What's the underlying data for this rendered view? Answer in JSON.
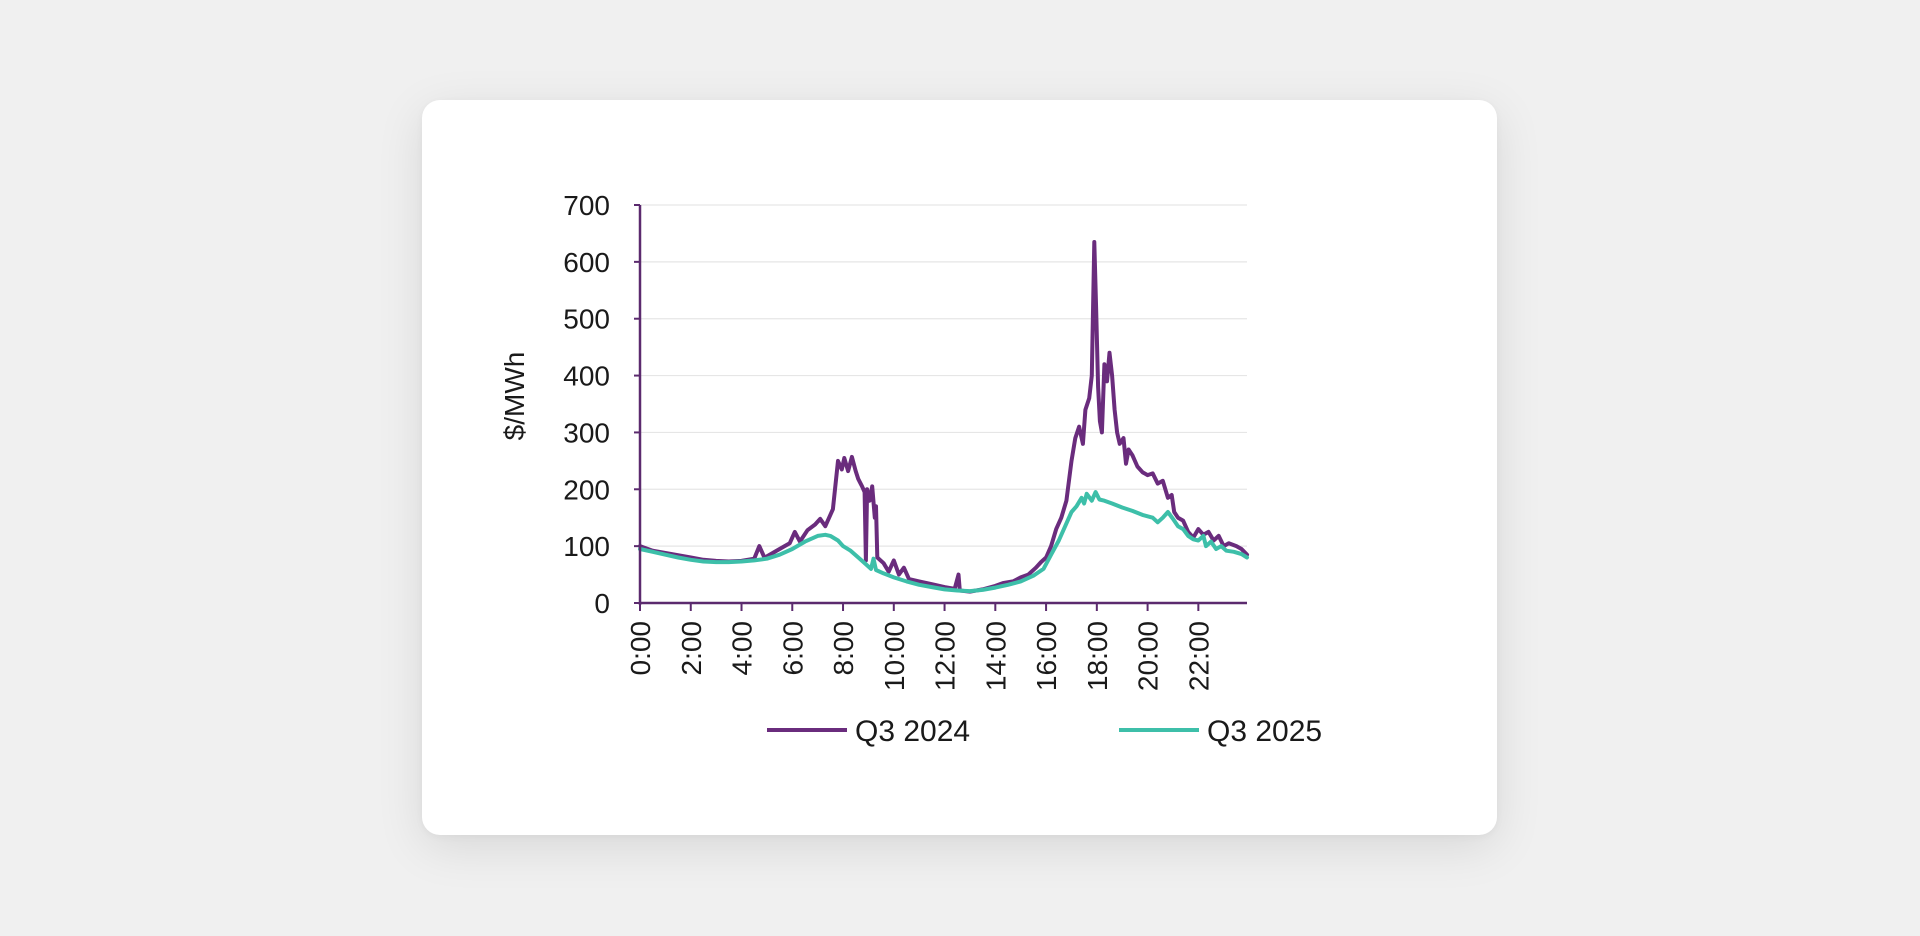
{
  "chart_data": {
    "type": "line",
    "ylabel": "$/MWh",
    "xlabel": "",
    "ylim": [
      0,
      700
    ],
    "y_ticks": [
      "0",
      "100",
      "200",
      "300",
      "400",
      "500",
      "600",
      "700"
    ],
    "x_tick_labels": [
      "0:00",
      "2:00",
      "4:00",
      "6:00",
      "8:00",
      "10:00",
      "12:00",
      "14:00",
      "16:00",
      "18:00",
      "20:00",
      "22:00"
    ],
    "x_tick_hours": [
      0,
      2,
      4,
      6,
      8,
      10,
      12,
      14,
      16,
      18,
      20,
      22
    ],
    "xlim_hours": [
      0,
      23.917
    ],
    "grid": "horizontal",
    "legend_position": "bottom",
    "series": [
      {
        "name": "Q3 2024",
        "color": "#6a2c7d",
        "points": [
          [
            0,
            100
          ],
          [
            0.5,
            92
          ],
          [
            1,
            88
          ],
          [
            1.5,
            84
          ],
          [
            2,
            80
          ],
          [
            2.5,
            76
          ],
          [
            3,
            74
          ],
          [
            3.5,
            73
          ],
          [
            4,
            74
          ],
          [
            4.5,
            78
          ],
          [
            4.7,
            100
          ],
          [
            4.9,
            80
          ],
          [
            5,
            82
          ],
          [
            5.5,
            95
          ],
          [
            5.9,
            105
          ],
          [
            6.1,
            125
          ],
          [
            6.3,
            108
          ],
          [
            6.6,
            128
          ],
          [
            6.9,
            138
          ],
          [
            7.1,
            148
          ],
          [
            7.3,
            135
          ],
          [
            7.6,
            165
          ],
          [
            7.8,
            250
          ],
          [
            7.95,
            235
          ],
          [
            8.05,
            255
          ],
          [
            8.2,
            232
          ],
          [
            8.35,
            257
          ],
          [
            8.5,
            232
          ],
          [
            8.6,
            218
          ],
          [
            8.75,
            205
          ],
          [
            8.85,
            195
          ],
          [
            8.9,
            75
          ],
          [
            8.95,
            200
          ],
          [
            9.05,
            180
          ],
          [
            9.15,
            205
          ],
          [
            9.25,
            150
          ],
          [
            9.3,
            170
          ],
          [
            9.35,
            80
          ],
          [
            9.6,
            70
          ],
          [
            9.8,
            55
          ],
          [
            10,
            75
          ],
          [
            10.2,
            50
          ],
          [
            10.4,
            62
          ],
          [
            10.6,
            42
          ],
          [
            11,
            38
          ],
          [
            11.5,
            33
          ],
          [
            12,
            28
          ],
          [
            12.4,
            25
          ],
          [
            12.55,
            50
          ],
          [
            12.6,
            22
          ],
          [
            13,
            20
          ],
          [
            13.5,
            24
          ],
          [
            14,
            30
          ],
          [
            14.3,
            35
          ],
          [
            14.7,
            38
          ],
          [
            15,
            45
          ],
          [
            15.3,
            50
          ],
          [
            15.6,
            62
          ],
          [
            15.8,
            72
          ],
          [
            16,
            80
          ],
          [
            16.2,
            100
          ],
          [
            16.4,
            130
          ],
          [
            16.6,
            150
          ],
          [
            16.8,
            180
          ],
          [
            17,
            250
          ],
          [
            17.15,
            290
          ],
          [
            17.3,
            310
          ],
          [
            17.45,
            280
          ],
          [
            17.55,
            340
          ],
          [
            17.7,
            360
          ],
          [
            17.8,
            400
          ],
          [
            17.9,
            635
          ],
          [
            17.97,
            520
          ],
          [
            18.05,
            380
          ],
          [
            18.12,
            320
          ],
          [
            18.2,
            300
          ],
          [
            18.3,
            420
          ],
          [
            18.4,
            390
          ],
          [
            18.5,
            440
          ],
          [
            18.6,
            400
          ],
          [
            18.7,
            340
          ],
          [
            18.8,
            300
          ],
          [
            18.9,
            280
          ],
          [
            19.05,
            290
          ],
          [
            19.15,
            245
          ],
          [
            19.25,
            270
          ],
          [
            19.4,
            260
          ],
          [
            19.6,
            240
          ],
          [
            19.8,
            230
          ],
          [
            20,
            225
          ],
          [
            20.2,
            228
          ],
          [
            20.4,
            210
          ],
          [
            20.6,
            215
          ],
          [
            20.8,
            185
          ],
          [
            20.95,
            190
          ],
          [
            21.05,
            160
          ],
          [
            21.2,
            150
          ],
          [
            21.4,
            145
          ],
          [
            21.6,
            125
          ],
          [
            21.8,
            115
          ],
          [
            22,
            130
          ],
          [
            22.2,
            120
          ],
          [
            22.4,
            125
          ],
          [
            22.6,
            110
          ],
          [
            22.8,
            118
          ],
          [
            23,
            100
          ],
          [
            23.2,
            105
          ],
          [
            23.5,
            100
          ],
          [
            23.7,
            95
          ],
          [
            23.917,
            85
          ]
        ]
      },
      {
        "name": "Q3 2025",
        "color": "#3dbfa9",
        "points": [
          [
            0,
            95
          ],
          [
            0.5,
            90
          ],
          [
            1,
            85
          ],
          [
            1.5,
            80
          ],
          [
            2,
            76
          ],
          [
            2.5,
            73
          ],
          [
            3,
            72
          ],
          [
            3.5,
            72
          ],
          [
            4,
            73
          ],
          [
            4.5,
            75
          ],
          [
            5,
            78
          ],
          [
            5.5,
            85
          ],
          [
            6,
            95
          ],
          [
            6.5,
            108
          ],
          [
            7,
            118
          ],
          [
            7.3,
            120
          ],
          [
            7.5,
            118
          ],
          [
            7.8,
            110
          ],
          [
            8,
            100
          ],
          [
            8.3,
            92
          ],
          [
            8.6,
            80
          ],
          [
            8.9,
            68
          ],
          [
            9.1,
            60
          ],
          [
            9.2,
            78
          ],
          [
            9.3,
            58
          ],
          [
            9.6,
            52
          ],
          [
            10,
            45
          ],
          [
            10.5,
            38
          ],
          [
            11,
            32
          ],
          [
            11.5,
            28
          ],
          [
            12,
            24
          ],
          [
            12.5,
            22
          ],
          [
            13,
            21
          ],
          [
            13.5,
            23
          ],
          [
            14,
            27
          ],
          [
            14.5,
            32
          ],
          [
            15,
            38
          ],
          [
            15.5,
            48
          ],
          [
            15.9,
            60
          ],
          [
            16.2,
            85
          ],
          [
            16.5,
            110
          ],
          [
            16.8,
            140
          ],
          [
            17,
            160
          ],
          [
            17.2,
            170
          ],
          [
            17.4,
            185
          ],
          [
            17.5,
            175
          ],
          [
            17.6,
            192
          ],
          [
            17.8,
            180
          ],
          [
            17.95,
            195
          ],
          [
            18.1,
            182
          ],
          [
            18.3,
            180
          ],
          [
            18.6,
            175
          ],
          [
            19,
            168
          ],
          [
            19.4,
            162
          ],
          [
            19.8,
            155
          ],
          [
            20.2,
            150
          ],
          [
            20.4,
            142
          ],
          [
            20.6,
            150
          ],
          [
            20.8,
            160
          ],
          [
            21,
            148
          ],
          [
            21.2,
            135
          ],
          [
            21.4,
            130
          ],
          [
            21.6,
            118
          ],
          [
            21.8,
            112
          ],
          [
            22,
            110
          ],
          [
            22.2,
            118
          ],
          [
            22.3,
            100
          ],
          [
            22.5,
            108
          ],
          [
            22.7,
            95
          ],
          [
            22.9,
            100
          ],
          [
            23.1,
            92
          ],
          [
            23.4,
            90
          ],
          [
            23.7,
            86
          ],
          [
            23.917,
            80
          ]
        ]
      }
    ]
  }
}
